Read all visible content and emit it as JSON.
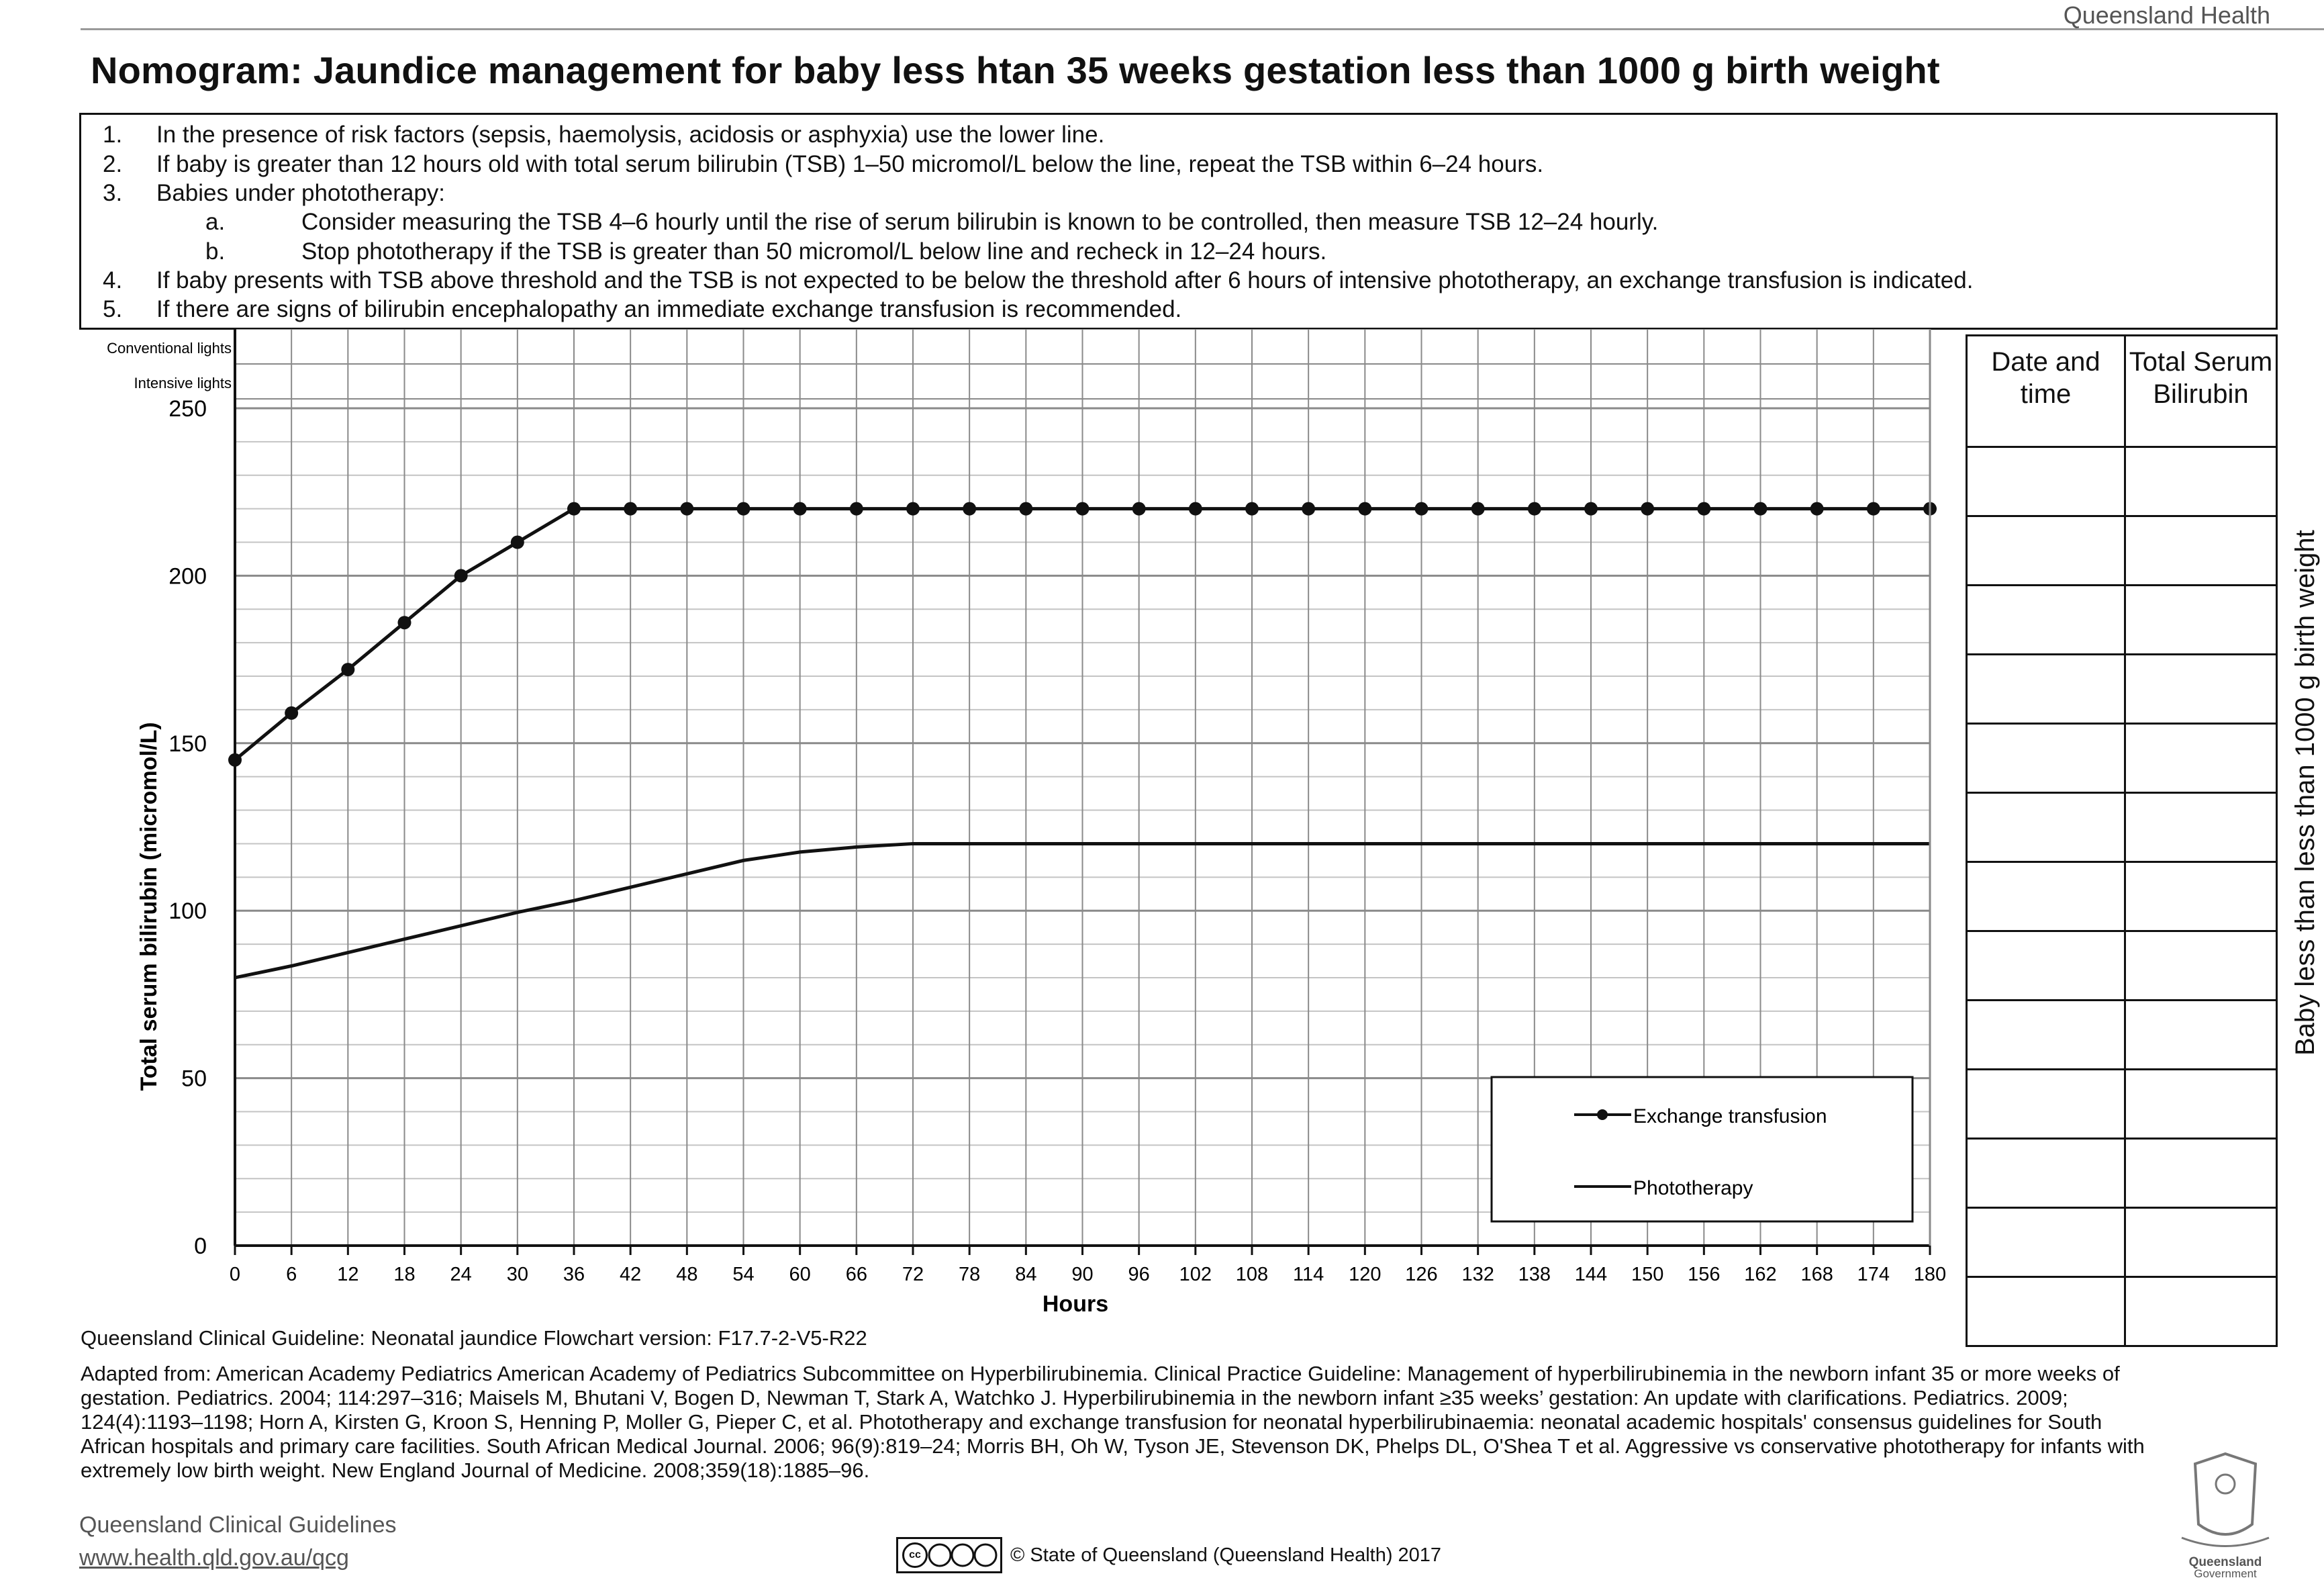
{
  "header": {
    "org": "Queensland Health",
    "title": "Nomogram: Jaundice management for baby less htan 35 weeks gestation less than 1000 g birth weight"
  },
  "instructions": [
    {
      "num": "1.",
      "text": "In the presence of risk factors (sepsis, haemolysis, acidosis or asphyxia) use the lower line."
    },
    {
      "num": "2.",
      "text": "If baby is greater than 12 hours old with total serum bilirubin (TSB) 1–50 micromol/L below the line, repeat the TSB within 6–24 hours."
    },
    {
      "num": "3.",
      "text": "Babies under phototherapy:"
    },
    {
      "num": "a.",
      "text": "Consider measuring the TSB 4–6 hourly until the rise of serum bilirubin is known to be controlled, then measure TSB 12–24 hourly."
    },
    {
      "num": "b.",
      "text": "Stop phototherapy if the TSB is greater than 50 micromol/L below line and recheck in 12–24 hours."
    },
    {
      "num": "4.",
      "text": "If baby presents with TSB above threshold and the TSB is not expected to be below the threshold after 6 hours of intensive phototherapy, an exchange transfusion is indicated."
    },
    {
      "num": "5.",
      "text": "If there are signs of bilirubin encephalopathy an immediate exchange transfusion is recommended."
    }
  ],
  "chart_data": {
    "type": "line",
    "title": "",
    "xlabel": "Hours",
    "ylabel": "Total serum bilirubin (micromol/L)",
    "xlim": [
      0,
      180
    ],
    "ylim": [
      0,
      250
    ],
    "x_ticks": [
      0,
      6,
      12,
      18,
      24,
      30,
      36,
      42,
      48,
      54,
      60,
      66,
      72,
      78,
      84,
      90,
      96,
      102,
      108,
      114,
      120,
      126,
      132,
      138,
      144,
      150,
      156,
      162,
      168,
      174,
      180
    ],
    "y_ticks": [
      0,
      50,
      100,
      150,
      200,
      250
    ],
    "row_labels": [
      "Conventional lights",
      "Intensive lights"
    ],
    "grid": true,
    "legend_position": "bottom-right",
    "series": [
      {
        "name": "Exchange transfusion",
        "marker": "circle",
        "x": [
          0,
          6,
          12,
          18,
          24,
          30,
          36,
          42,
          48,
          54,
          60,
          66,
          72,
          78,
          84,
          90,
          96,
          102,
          108,
          114,
          120,
          126,
          132,
          138,
          144,
          150,
          156,
          162,
          168,
          174,
          180
        ],
        "y": [
          145,
          159,
          172,
          186,
          200,
          210,
          220,
          220,
          220,
          220,
          220,
          220,
          220,
          220,
          220,
          220,
          220,
          220,
          220,
          220,
          220,
          220,
          220,
          220,
          220,
          220,
          220,
          220,
          220,
          220,
          220
        ]
      },
      {
        "name": "Phototherapy",
        "marker": "none",
        "x": [
          0,
          6,
          12,
          18,
          24,
          30,
          36,
          42,
          48,
          54,
          60,
          66,
          72,
          78,
          84,
          90,
          96,
          102,
          108,
          114,
          120,
          126,
          132,
          138,
          144,
          150,
          156,
          162,
          168,
          174,
          180
        ],
        "y": [
          80,
          83.5,
          87.5,
          91.5,
          95.5,
          99.5,
          103,
          107,
          111,
          115,
          117.5,
          119,
          120,
          120,
          120,
          120,
          120,
          120,
          120,
          120,
          120,
          120,
          120,
          120,
          120,
          120,
          120,
          120,
          120,
          120,
          120
        ]
      }
    ]
  },
  "record_table": {
    "col1": "Date and time",
    "col2": "Total Serum Bilirubin"
  },
  "side_label": "Baby less than less than 1000 g birth weight",
  "footer": {
    "version": "Queensland Clinical Guideline: Neonatal jaundice Flowchart version: F17.7-2-V5-R22",
    "adapted": "Adapted from: American Academy Pediatrics American Academy of Pediatrics Subcommittee on Hyperbilirubinemia. Clinical Practice Guideline: Management of hyperbilirubinemia in the newborn infant 35 or more weeks of gestation. Pediatrics. 2004; 114:297–316; Maisels M, Bhutani V, Bogen D, Newman T, Stark A, Watchko J. Hyperbilirubinemia in the newborn infant ≥35 weeks’ gestation: An update with clarifications. Pediatrics. 2009; 124(4):1193–1198; Horn A, Kirsten G, Kroon S, Henning P, Moller G, Pieper C, et al. Phototherapy and exchange transfusion for neonatal hyperbilirubinaemia: neonatal academic hospitals' consensus guidelines for South African hospitals and primary care facilities. South African Medical Journal. 2006; 96(9):819–24; Morris BH, Oh W, Tyson JE, Stevenson DK, Phelps DL, O'Shea T et al. Aggressive vs conservative phototherapy for infants with extremely low birth weight. New England Journal of Medicine. 2008;359(18):1885–96.",
    "qcg_name": "Queensland Clinical Guidelines",
    "qcg_url": "www.health.qld.gov.au/qcg",
    "cc_text": "cc",
    "copyright": "© State of Queensland (Queensland Health) 2017",
    "gov_logo_line1": "Queensland",
    "gov_logo_line2": "Government"
  },
  "colors": {
    "ink": "#111111",
    "grid": "#8a8a8a",
    "minor_grid": "#c4c4c4",
    "muted": "#555555"
  }
}
